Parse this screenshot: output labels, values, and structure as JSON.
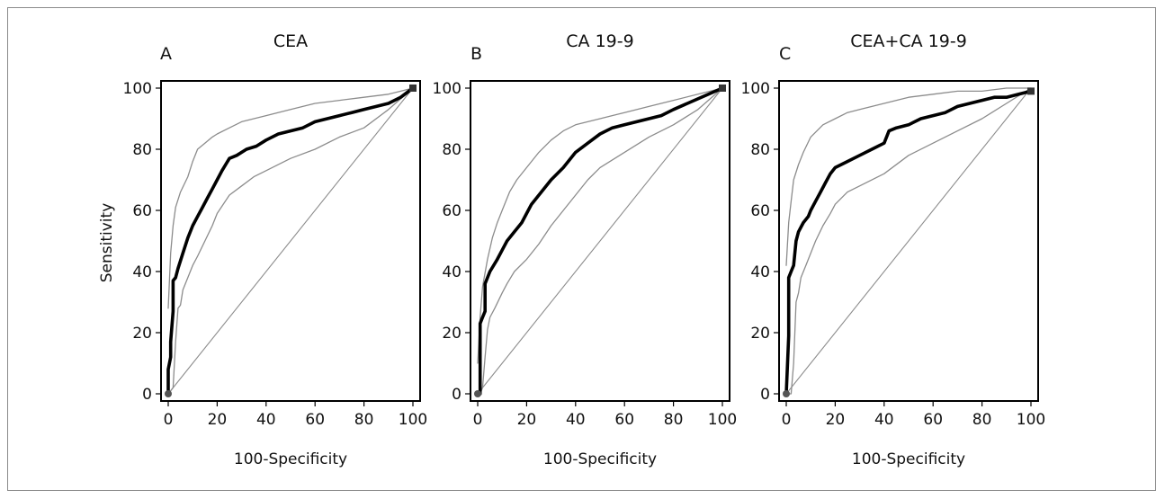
{
  "colors": {
    "main_curve": "#000000",
    "ci_curve": "#8c8c8c",
    "diagonal": "#8c8c8c",
    "frame": "#000000"
  },
  "shared_axes": {
    "ylabel": "Sensitivity",
    "xlabel": "100-Specificity"
  },
  "chart_data": [
    {
      "type": "line",
      "panel_letter": "A",
      "title": "CEA",
      "xlabel": "100-Specificity",
      "ylabel": "Sensitivity",
      "xlim": [
        0,
        100
      ],
      "ylim": [
        0,
        100
      ],
      "xticks": [
        0,
        20,
        40,
        60,
        80,
        100
      ],
      "yticks": [
        0,
        20,
        40,
        60,
        80,
        100
      ],
      "grid": false,
      "series": [
        {
          "role": "estimate",
          "x": [
            0,
            0,
            1,
            1,
            2,
            2,
            3,
            4,
            6,
            8,
            10,
            12,
            14,
            16,
            18,
            20,
            22,
            25,
            28,
            32,
            36,
            40,
            45,
            50,
            55,
            60,
            65,
            70,
            75,
            80,
            85,
            90,
            95,
            100
          ],
          "y": [
            0,
            8,
            12,
            17,
            27,
            37,
            38,
            41,
            46,
            51,
            55,
            58,
            61,
            64,
            67,
            70,
            73,
            77,
            78,
            80,
            81,
            83,
            85,
            86,
            87,
            89,
            90,
            91,
            92,
            93,
            94,
            95,
            97,
            100
          ]
        },
        {
          "role": "ci_upper",
          "x": [
            0,
            1,
            2,
            3,
            5,
            8,
            10,
            12,
            15,
            18,
            20,
            25,
            30,
            35,
            40,
            50,
            60,
            70,
            80,
            90,
            100
          ],
          "y": [
            28,
            46,
            55,
            61,
            66,
            71,
            76,
            80,
            82,
            84,
            85,
            87,
            89,
            90,
            91,
            93,
            95,
            96,
            97,
            98,
            100
          ]
        },
        {
          "role": "ci_lower",
          "x": [
            0,
            2,
            3,
            4,
            5,
            6,
            8,
            10,
            12,
            15,
            18,
            20,
            25,
            30,
            35,
            40,
            50,
            60,
            70,
            80,
            90,
            100
          ],
          "y": [
            0,
            2,
            17,
            28,
            29,
            34,
            38,
            42,
            45,
            50,
            55,
            59,
            65,
            68,
            71,
            73,
            77,
            80,
            84,
            87,
            93,
            100
          ]
        },
        {
          "role": "reference",
          "x": [
            0,
            100
          ],
          "y": [
            0,
            100
          ]
        }
      ]
    },
    {
      "type": "line",
      "panel_letter": "B",
      "title": "CA 19-9",
      "xlabel": "100-Specificity",
      "ylabel": "Sensitivity",
      "xlim": [
        0,
        100
      ],
      "ylim": [
        0,
        100
      ],
      "xticks": [
        0,
        20,
        40,
        60,
        80,
        100
      ],
      "yticks": [
        0,
        20,
        40,
        60,
        80,
        100
      ],
      "grid": false,
      "series": [
        {
          "role": "estimate",
          "x": [
            0,
            1,
            1,
            2,
            3,
            3,
            5,
            8,
            10,
            12,
            15,
            18,
            20,
            22,
            25,
            30,
            35,
            40,
            45,
            50,
            55,
            60,
            65,
            70,
            75,
            80,
            100
          ],
          "y": [
            0,
            0,
            23,
            25,
            27,
            36,
            40,
            44,
            47,
            50,
            53,
            56,
            59,
            62,
            65,
            70,
            74,
            79,
            82,
            85,
            87,
            88,
            89,
            90,
            91,
            93,
            100
          ]
        },
        {
          "role": "ci_upper",
          "x": [
            0,
            1,
            2,
            4,
            6,
            8,
            10,
            13,
            16,
            20,
            25,
            30,
            35,
            40,
            50,
            60,
            70,
            80,
            90,
            100
          ],
          "y": [
            10,
            25,
            35,
            44,
            51,
            56,
            60,
            66,
            70,
            74,
            79,
            83,
            86,
            88,
            90,
            92,
            94,
            96,
            98,
            100
          ]
        },
        {
          "role": "ci_lower",
          "x": [
            0,
            1,
            2,
            3,
            4,
            5,
            7,
            10,
            12,
            15,
            20,
            25,
            30,
            35,
            40,
            45,
            50,
            60,
            70,
            80,
            90,
            100
          ],
          "y": [
            0,
            0,
            2,
            12,
            21,
            25,
            28,
            33,
            36,
            40,
            44,
            49,
            55,
            60,
            65,
            70,
            74,
            79,
            84,
            88,
            93,
            100
          ]
        },
        {
          "role": "reference",
          "x": [
            0,
            100
          ],
          "y": [
            0,
            100
          ]
        }
      ]
    },
    {
      "type": "line",
      "panel_letter": "C",
      "title": "CEA+CA 19-9",
      "xlabel": "100-Specificity",
      "ylabel": "Sensitivity",
      "xlim": [
        0,
        100
      ],
      "ylim": [
        0,
        100
      ],
      "xticks": [
        0,
        20,
        40,
        60,
        80,
        100
      ],
      "yticks": [
        0,
        20,
        40,
        60,
        80,
        100
      ],
      "grid": false,
      "series": [
        {
          "role": "estimate",
          "x": [
            0,
            1,
            1,
            2,
            3,
            4,
            5,
            7,
            9,
            10,
            12,
            14,
            16,
            18,
            20,
            25,
            30,
            35,
            40,
            42,
            45,
            50,
            55,
            60,
            65,
            70,
            75,
            80,
            85,
            90,
            95,
            100
          ],
          "y": [
            0,
            19,
            38,
            40,
            42,
            50,
            53,
            56,
            58,
            60,
            63,
            66,
            69,
            72,
            74,
            76,
            78,
            80,
            82,
            86,
            87,
            88,
            90,
            91,
            92,
            94,
            95,
            96,
            97,
            97,
            98,
            99
          ]
        },
        {
          "role": "ci_upper",
          "x": [
            0,
            1,
            2,
            3,
            5,
            7,
            10,
            15,
            20,
            25,
            30,
            40,
            50,
            60,
            70,
            80,
            90,
            100
          ],
          "y": [
            42,
            56,
            63,
            70,
            75,
            79,
            84,
            88,
            90,
            92,
            93,
            95,
            97,
            98,
            99,
            99,
            100,
            100
          ]
        },
        {
          "role": "ci_lower",
          "x": [
            0,
            2,
            3,
            4,
            5,
            6,
            8,
            10,
            12,
            15,
            18,
            20,
            25,
            30,
            40,
            50,
            60,
            70,
            80,
            90,
            100
          ],
          "y": [
            0,
            0,
            10,
            30,
            33,
            38,
            42,
            46,
            50,
            55,
            59,
            62,
            66,
            68,
            72,
            78,
            82,
            86,
            90,
            95,
            100
          ]
        },
        {
          "role": "reference",
          "x": [
            0,
            100
          ],
          "y": [
            0,
            100
          ]
        }
      ]
    }
  ]
}
